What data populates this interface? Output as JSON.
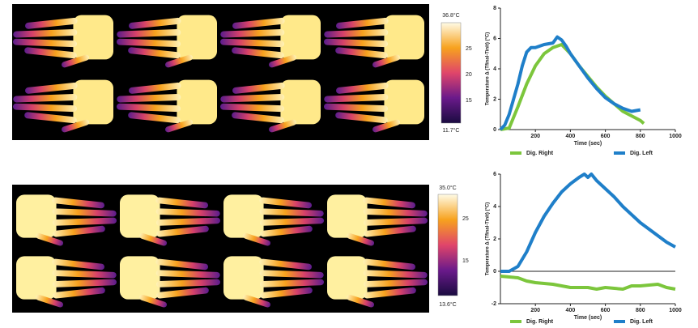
{
  "colorbars": [
    {
      "max_label": "36.8°C",
      "min_label": "11.7°C",
      "ticks": [
        "25",
        "20",
        "15"
      ]
    },
    {
      "max_label": "35.0°C",
      "min_label": "13.6°C",
      "ticks": [
        "25",
        "15"
      ]
    }
  ],
  "chart_data": [
    {
      "type": "line",
      "xlabel": "Time (sec)",
      "ylabel": "Temperature Δ (Tfinal-Tinit) (°C)",
      "xlim": [
        0,
        1000
      ],
      "xticks": [
        200,
        400,
        600,
        800,
        1000
      ],
      "ylim": [
        0,
        8
      ],
      "yticks": [
        0,
        2,
        4,
        6,
        8
      ],
      "series": [
        {
          "name": "Dig. Right",
          "color": "#7cc63c",
          "x": [
            0,
            50,
            100,
            150,
            200,
            250,
            300,
            350,
            400,
            450,
            500,
            550,
            600,
            650,
            700,
            750,
            800,
            820
          ],
          "values": [
            0,
            0.1,
            1.5,
            3,
            4.2,
            5,
            5.4,
            5.6,
            5.0,
            4.2,
            3.5,
            2.8,
            2.2,
            1.7,
            1.2,
            0.9,
            0.6,
            0.4
          ]
        },
        {
          "name": "Dig. Left",
          "color": "#1f7fc9",
          "x": [
            0,
            25,
            50,
            75,
            100,
            125,
            150,
            175,
            200,
            250,
            300,
            325,
            350,
            375,
            400,
            450,
            500,
            550,
            600,
            650,
            700,
            750,
            800
          ],
          "values": [
            0,
            0.3,
            1,
            2,
            3,
            4.2,
            5.1,
            5.4,
            5.4,
            5.6,
            5.7,
            6.1,
            5.9,
            5.5,
            5.0,
            4.2,
            3.4,
            2.7,
            2.1,
            1.7,
            1.4,
            1.2,
            1.3
          ]
        }
      ]
    },
    {
      "type": "line",
      "xlabel": "Time (sec)",
      "ylabel": "Temperature Δ (Tfinal-Tinit) (°C)",
      "xlim": [
        0,
        1000
      ],
      "xticks": [
        200,
        400,
        600,
        800,
        1000
      ],
      "ylim": [
        -2,
        6
      ],
      "yticks": [
        -2,
        0,
        2,
        4,
        6
      ],
      "zero_line": true,
      "series": [
        {
          "name": "Dig. Right",
          "color": "#7cc63c",
          "x": [
            0,
            100,
            150,
            200,
            300,
            350,
            400,
            500,
            550,
            600,
            700,
            750,
            800,
            900,
            950,
            1000
          ],
          "values": [
            -0.3,
            -0.4,
            -0.6,
            -0.7,
            -0.8,
            -0.9,
            -1.0,
            -1.0,
            -1.1,
            -1.0,
            -1.1,
            -0.9,
            -0.9,
            -0.8,
            -1.0,
            -1.1
          ]
        },
        {
          "name": "Dig. Left",
          "color": "#1f7fc9",
          "x": [
            0,
            50,
            100,
            150,
            200,
            250,
            300,
            350,
            400,
            450,
            480,
            500,
            520,
            550,
            600,
            650,
            700,
            750,
            800,
            850,
            900,
            950,
            1000
          ],
          "values": [
            0,
            0,
            0.3,
            1.2,
            2.4,
            3.4,
            4.2,
            4.9,
            5.4,
            5.8,
            6.0,
            5.8,
            6.0,
            5.6,
            5.1,
            4.6,
            4.0,
            3.5,
            3.0,
            2.6,
            2.2,
            1.8,
            1.5
          ]
        }
      ]
    }
  ]
}
